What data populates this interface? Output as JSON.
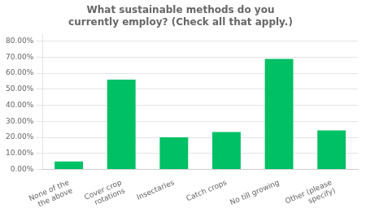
{
  "chart_data": {
    "type": "bar",
    "title": "What sustainable methods do you\ncurrently employ? (Check all that apply.)",
    "categories": [
      "None of the\nthe above",
      "Cover crop\nrotations",
      "Insectaries",
      "Catch crops",
      "No till growing",
      "Other (please\nspecify)"
    ],
    "values": [
      0.05,
      0.56,
      0.2,
      0.233,
      0.69,
      0.243
    ],
    "color": "#00C065",
    "ylim": [
      0,
      0.84
    ],
    "yticks": [
      {
        "value": 0.0,
        "label": "0.00%"
      },
      {
        "value": 0.1,
        "label": "10.00%"
      },
      {
        "value": 0.2,
        "label": "20.00%"
      },
      {
        "value": 0.3,
        "label": "30.00%"
      },
      {
        "value": 0.4,
        "label": "40.00%"
      },
      {
        "value": 0.5,
        "label": "50.00%"
      },
      {
        "value": 0.6,
        "label": "60.00%"
      },
      {
        "value": 0.7,
        "label": "70.00%"
      },
      {
        "value": 0.8,
        "label": "80.00%"
      }
    ],
    "grid": true
  }
}
